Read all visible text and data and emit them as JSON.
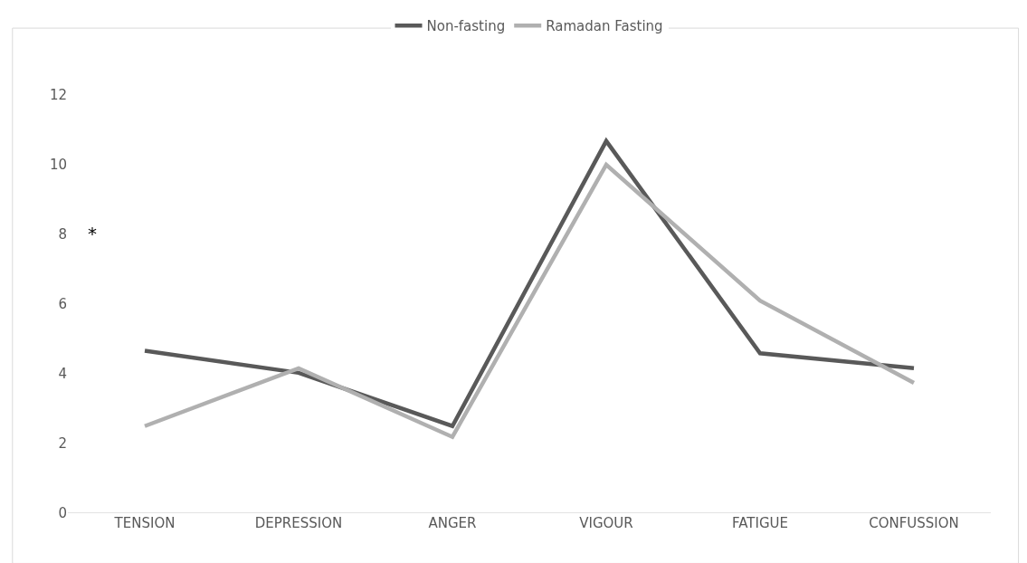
{
  "chart_data": {
    "type": "line",
    "categories": [
      "TENSION",
      "DEPRESSION",
      "ANGER",
      "VIGOUR",
      "FATIGUE",
      "CONFUSSION"
    ],
    "series": [
      {
        "name": "Non-fasting",
        "color": "#595959",
        "values": [
          4.66,
          4.03,
          2.5,
          10.68,
          4.59,
          4.16
        ]
      },
      {
        "name": "Ramadan Fasting",
        "color": "#b0b0b0",
        "values": [
          2.5,
          4.16,
          2.19,
          10.0,
          6.1,
          3.74
        ]
      }
    ],
    "ylim": [
      0,
      12
    ],
    "yticks": [
      0,
      2,
      4,
      6,
      8,
      10,
      12
    ],
    "grid": false,
    "legend": "top",
    "marker": "none",
    "line_style": "solid",
    "annotations": [
      "*"
    ]
  }
}
